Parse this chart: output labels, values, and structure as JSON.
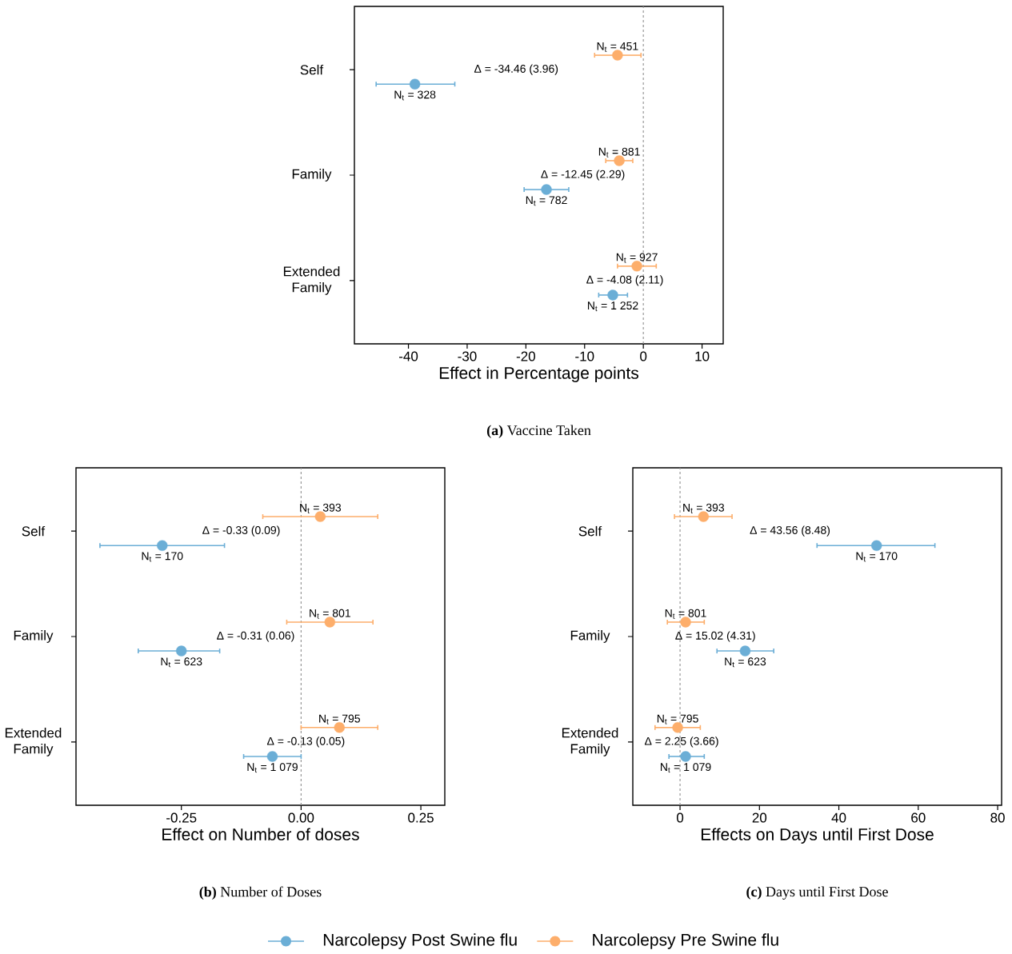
{
  "chart_data": [
    {
      "type": "scatter",
      "orientation": "horizontal",
      "title": "**(a)** Vaccine Taken",
      "xlabel": "Effect in Percentage points",
      "categories": [
        "Self",
        "Family",
        "Extended Family"
      ],
      "xlim": [
        -49.2,
        13.6
      ],
      "xticks": [
        -40,
        -30,
        -20,
        -10,
        0,
        10
      ],
      "marker": "circle",
      "series": [
        {
          "color": "#6baed6",
          "values": [
            -38.9,
            -16.5,
            -5.2
          ],
          "errors": [
            [
              -45.5,
              -32.1
            ],
            [
              -20.3,
              -12.7
            ],
            [
              -7.6,
              -2.7
            ]
          ]
        },
        {
          "color": "#fdae6b",
          "values": [
            -4.4,
            -4.1,
            -1.1
          ],
          "errors": [
            [
              -8.3,
              -0.4
            ],
            [
              -6.4,
              -1.8
            ],
            [
              -4.4,
              2.2
            ]
          ]
        }
      ],
      "annotations": [
        "N$_{t}$ = 328",
        "N$_{t}$ = 782",
        "N$_{t}$ = 1 252",
        "N$_{t}$ = 451",
        "N$_{t}$ = 881",
        "N$_{t}$ = 927",
        "Δ = -34.46  (3.96)",
        "Δ = -12.45  (2.29)",
        "Δ = -4.08  (2.11)"
      ],
      "ref_lines": [
        {
          "axis": "x",
          "value": 0,
          "color": "#999999",
          "line_style": "dashed"
        }
      ]
    },
    {
      "type": "scatter",
      "orientation": "horizontal",
      "title": "**(b)** Number of Doses",
      "xlabel": "Effect on Number of doses",
      "categories": [
        "Self",
        "Family",
        "Extended Family"
      ],
      "xlim": [
        -0.47,
        0.3
      ],
      "xticks": [
        {
          "value": -0.25,
          "label": "-0.25"
        },
        {
          "value": 0,
          "label": "0.00"
        },
        {
          "value": 0.25,
          "label": "0.25"
        }
      ],
      "marker": "circle",
      "series": [
        {
          "color": "#6baed6",
          "values": [
            -0.29,
            -0.25,
            -0.06
          ],
          "errors": [
            [
              -0.42,
              -0.16
            ],
            [
              -0.34,
              -0.17
            ],
            [
              -0.12,
              0.0
            ]
          ]
        },
        {
          "color": "#fdae6b",
          "values": [
            0.04,
            0.06,
            0.08
          ],
          "errors": [
            [
              -0.08,
              0.16
            ],
            [
              -0.03,
              0.15
            ],
            [
              0.0,
              0.16
            ]
          ]
        }
      ],
      "annotations": [
        "N$_{t}$ = 170",
        "N$_{t}$ = 623",
        "N$_{t}$ = 1 079",
        "N$_{t}$ = 393",
        "N$_{t}$ = 801",
        "N$_{t}$ = 795",
        "Δ = -0.33  (0.09)",
        "Δ = -0.31  (0.06)",
        "Δ = -0.13  (0.05)"
      ],
      "ref_lines": [
        {
          "axis": "x",
          "value": 0,
          "color": "#999999",
          "line_style": "dashed"
        }
      ]
    },
    {
      "type": "scatter",
      "orientation": "horizontal",
      "title": "**(c)** Days until First Dose",
      "xlabel": "Effects on Days until First Dose",
      "categories": [
        "Self",
        "Family",
        "Extended Family"
      ],
      "xlim": [
        -11.9,
        81.0
      ],
      "xticks": [
        0,
        20,
        40,
        60,
        80
      ],
      "marker": "circle",
      "legend": "bottom",
      "series": [
        {
          "name": "Narcolepsy Post Swine flu",
          "color": "#6baed6",
          "values": [
            49.5,
            16.4,
            1.4
          ],
          "errors": [
            [
              34.5,
              64.2
            ],
            [
              9.3,
              23.6
            ],
            [
              -2.8,
              6.1
            ]
          ]
        },
        {
          "name": "Narcolepsy Pre Swine flu",
          "color": "#fdae6b",
          "values": [
            5.9,
            1.4,
            -0.6
          ],
          "errors": [
            [
              -1.4,
              13.1
            ],
            [
              -3.2,
              6.1
            ],
            [
              -6.3,
              5.1
            ]
          ]
        }
      ],
      "annotations": [
        "N$_{t}$ = 170",
        "N$_{t}$ = 623",
        "N$_{t}$ = 1 079",
        "N$_{t}$ = 393",
        "N$_{t}$ = 801",
        "N$_{t}$ = 795",
        "Δ = 43.56  (8.48)",
        "Δ = 15.02  (4.31)",
        "Δ = 2.25  (3.66)"
      ],
      "ref_lines": [
        {
          "axis": "x",
          "value": 0,
          "color": "#999999",
          "line_style": "dashed"
        }
      ]
    }
  ]
}
